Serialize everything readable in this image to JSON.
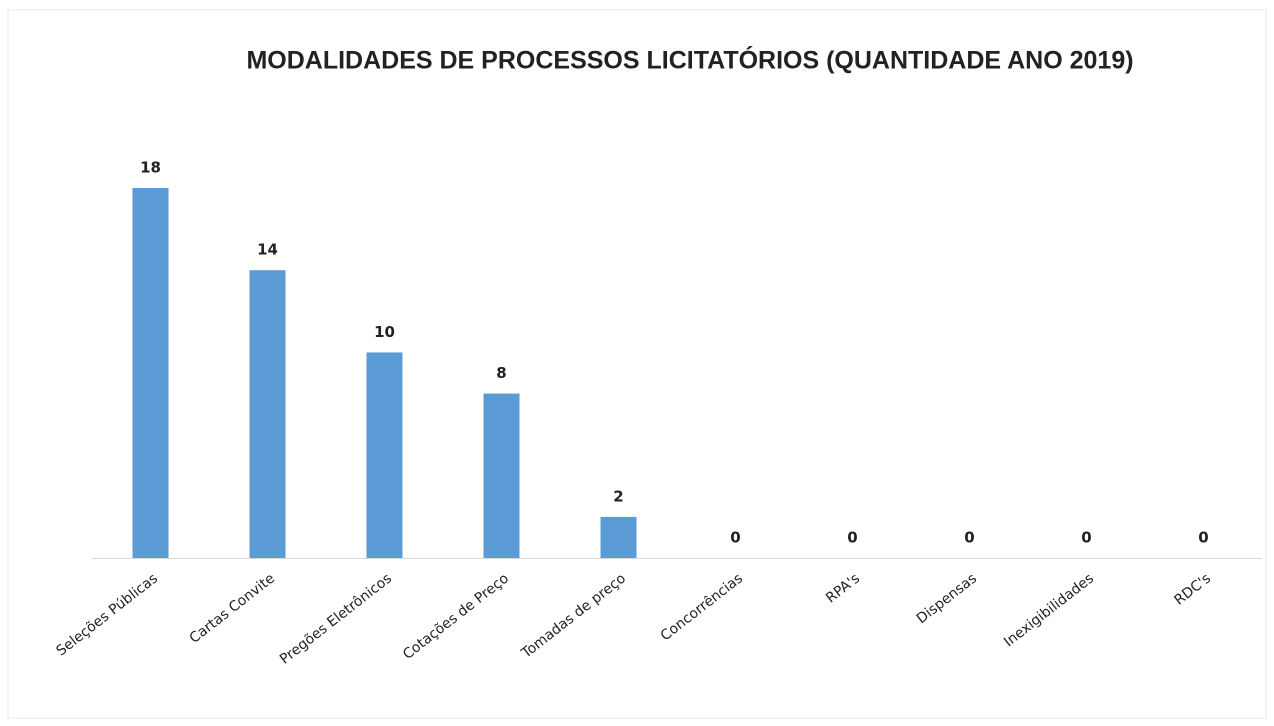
{
  "chart_data": {
    "type": "bar",
    "title": "MODALIDADES DE PROCESSOS LICITATÓRIOS (QUANTIDADE ANO 2019)",
    "categories": [
      "Seleções Públicas",
      "Cartas Convite",
      "Pregões Eletrônicos",
      "Cotações de Preço",
      "Tomadas de preço",
      "Concorrências",
      "RPA's",
      "Dispensas",
      "Inexigibilidades",
      "RDC's"
    ],
    "values": [
      18,
      14,
      10,
      8,
      2,
      0,
      0,
      0,
      0,
      0
    ],
    "color": "#5b9bd5"
  }
}
